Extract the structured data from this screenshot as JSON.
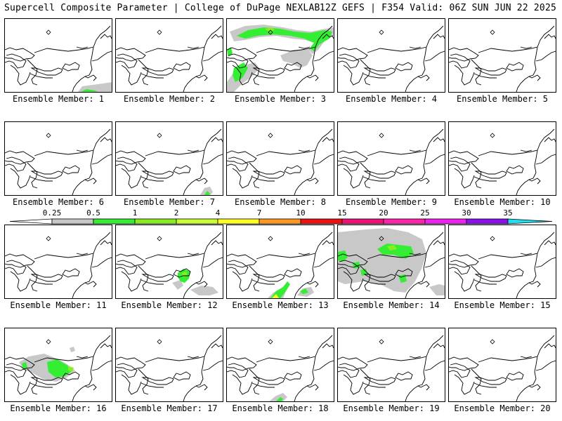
{
  "header": {
    "left_title": "Supercell Composite Parameter | College of DuPage NEXLAB",
    "right_title": "12Z GEFS | F354 Valid: 06Z SUN JUN 22 2025"
  },
  "colorbar": {
    "labels": [
      "0.25",
      "0.5",
      "1",
      "2",
      "4",
      "7",
      "10",
      "15",
      "20",
      "25",
      "30",
      "35"
    ],
    "colors": [
      "#c8c8c8",
      "#33ee33",
      "#88ee22",
      "#ccff33",
      "#ffff22",
      "#ff9922",
      "#ee1111",
      "#ee1177",
      "#ff22aa",
      "#ee22ee",
      "#8811ee",
      "#aa66dd",
      "#22ddee"
    ]
  },
  "panels": [
    {
      "label": "Ensemble Member: 1"
    },
    {
      "label": "Ensemble Member: 2"
    },
    {
      "label": "Ensemble Member: 3"
    },
    {
      "label": "Ensemble Member: 4"
    },
    {
      "label": "Ensemble Member: 5"
    },
    {
      "label": "Ensemble Member: 6"
    },
    {
      "label": "Ensemble Member: 7"
    },
    {
      "label": "Ensemble Member: 8"
    },
    {
      "label": "Ensemble Member: 9"
    },
    {
      "label": "Ensemble Member: 10"
    },
    {
      "label": "Ensemble Member: 11"
    },
    {
      "label": "Ensemble Member: 12"
    },
    {
      "label": "Ensemble Member: 13"
    },
    {
      "label": "Ensemble Member: 14"
    },
    {
      "label": "Ensemble Member: 15"
    },
    {
      "label": "Ensemble Member: 16"
    },
    {
      "label": "Ensemble Member: 17"
    },
    {
      "label": "Ensemble Member: 18"
    },
    {
      "label": "Ensemble Member: 19"
    },
    {
      "label": "Ensemble Member: 20"
    }
  ]
}
